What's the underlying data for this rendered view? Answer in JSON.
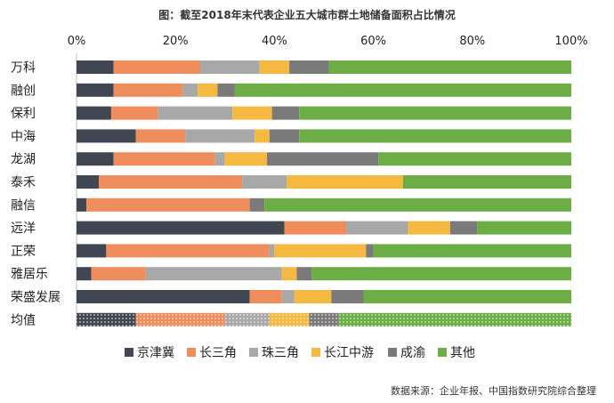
{
  "chart_data": {
    "type": "bar",
    "orientation": "horizontal",
    "stacked": "percent",
    "title": "图：截至2018年末代表企业五大城市群土地储备面积占比情况",
    "x_ticks": [
      "0%",
      "20%",
      "40%",
      "60%",
      "80%",
      "100%"
    ],
    "xlim": [
      0,
      100
    ],
    "categories": [
      "万科",
      "融创",
      "保利",
      "中海",
      "龙湖",
      "泰禾",
      "融信",
      "远洋",
      "正荣",
      "雅居乐",
      "荣盛发展",
      "均值"
    ],
    "highlight_category": "均值",
    "series": [
      {
        "name": "京津冀",
        "color": "#404652",
        "values": [
          7.5,
          7.5,
          7,
          12,
          7.5,
          4.5,
          2,
          42,
          6,
          3,
          35,
          12
        ]
      },
      {
        "name": "长三角",
        "color": "#f08d5c",
        "values": [
          17.5,
          14,
          9.5,
          10,
          20.5,
          29,
          33,
          12.5,
          33,
          11,
          6.5,
          18
        ]
      },
      {
        "name": "珠三角",
        "color": "#a8a8a8",
        "values": [
          12,
          3,
          15,
          14,
          2,
          9,
          0,
          12.5,
          1,
          27.5,
          2.5,
          9
        ]
      },
      {
        "name": "长江中游",
        "color": "#f5b942",
        "values": [
          6,
          4,
          8,
          3,
          8.5,
          23.5,
          0,
          8.5,
          18.5,
          3,
          7.5,
          8
        ]
      },
      {
        "name": "成渝",
        "color": "#7a7a7a",
        "values": [
          8,
          3.5,
          5.5,
          6,
          22.5,
          0,
          3,
          5.5,
          1.5,
          3,
          6.5,
          6
        ]
      },
      {
        "name": "其他",
        "color": "#6cad45",
        "values": [
          49,
          68,
          55,
          55,
          39,
          34,
          62,
          19,
          40,
          52.5,
          42,
          47
        ]
      }
    ],
    "legend": {
      "position": "bottom"
    },
    "grid": false
  },
  "source_text": "数据来源：企业年报、中国指数研究院综合整理",
  "watermark_text": "中国指数研究院"
}
